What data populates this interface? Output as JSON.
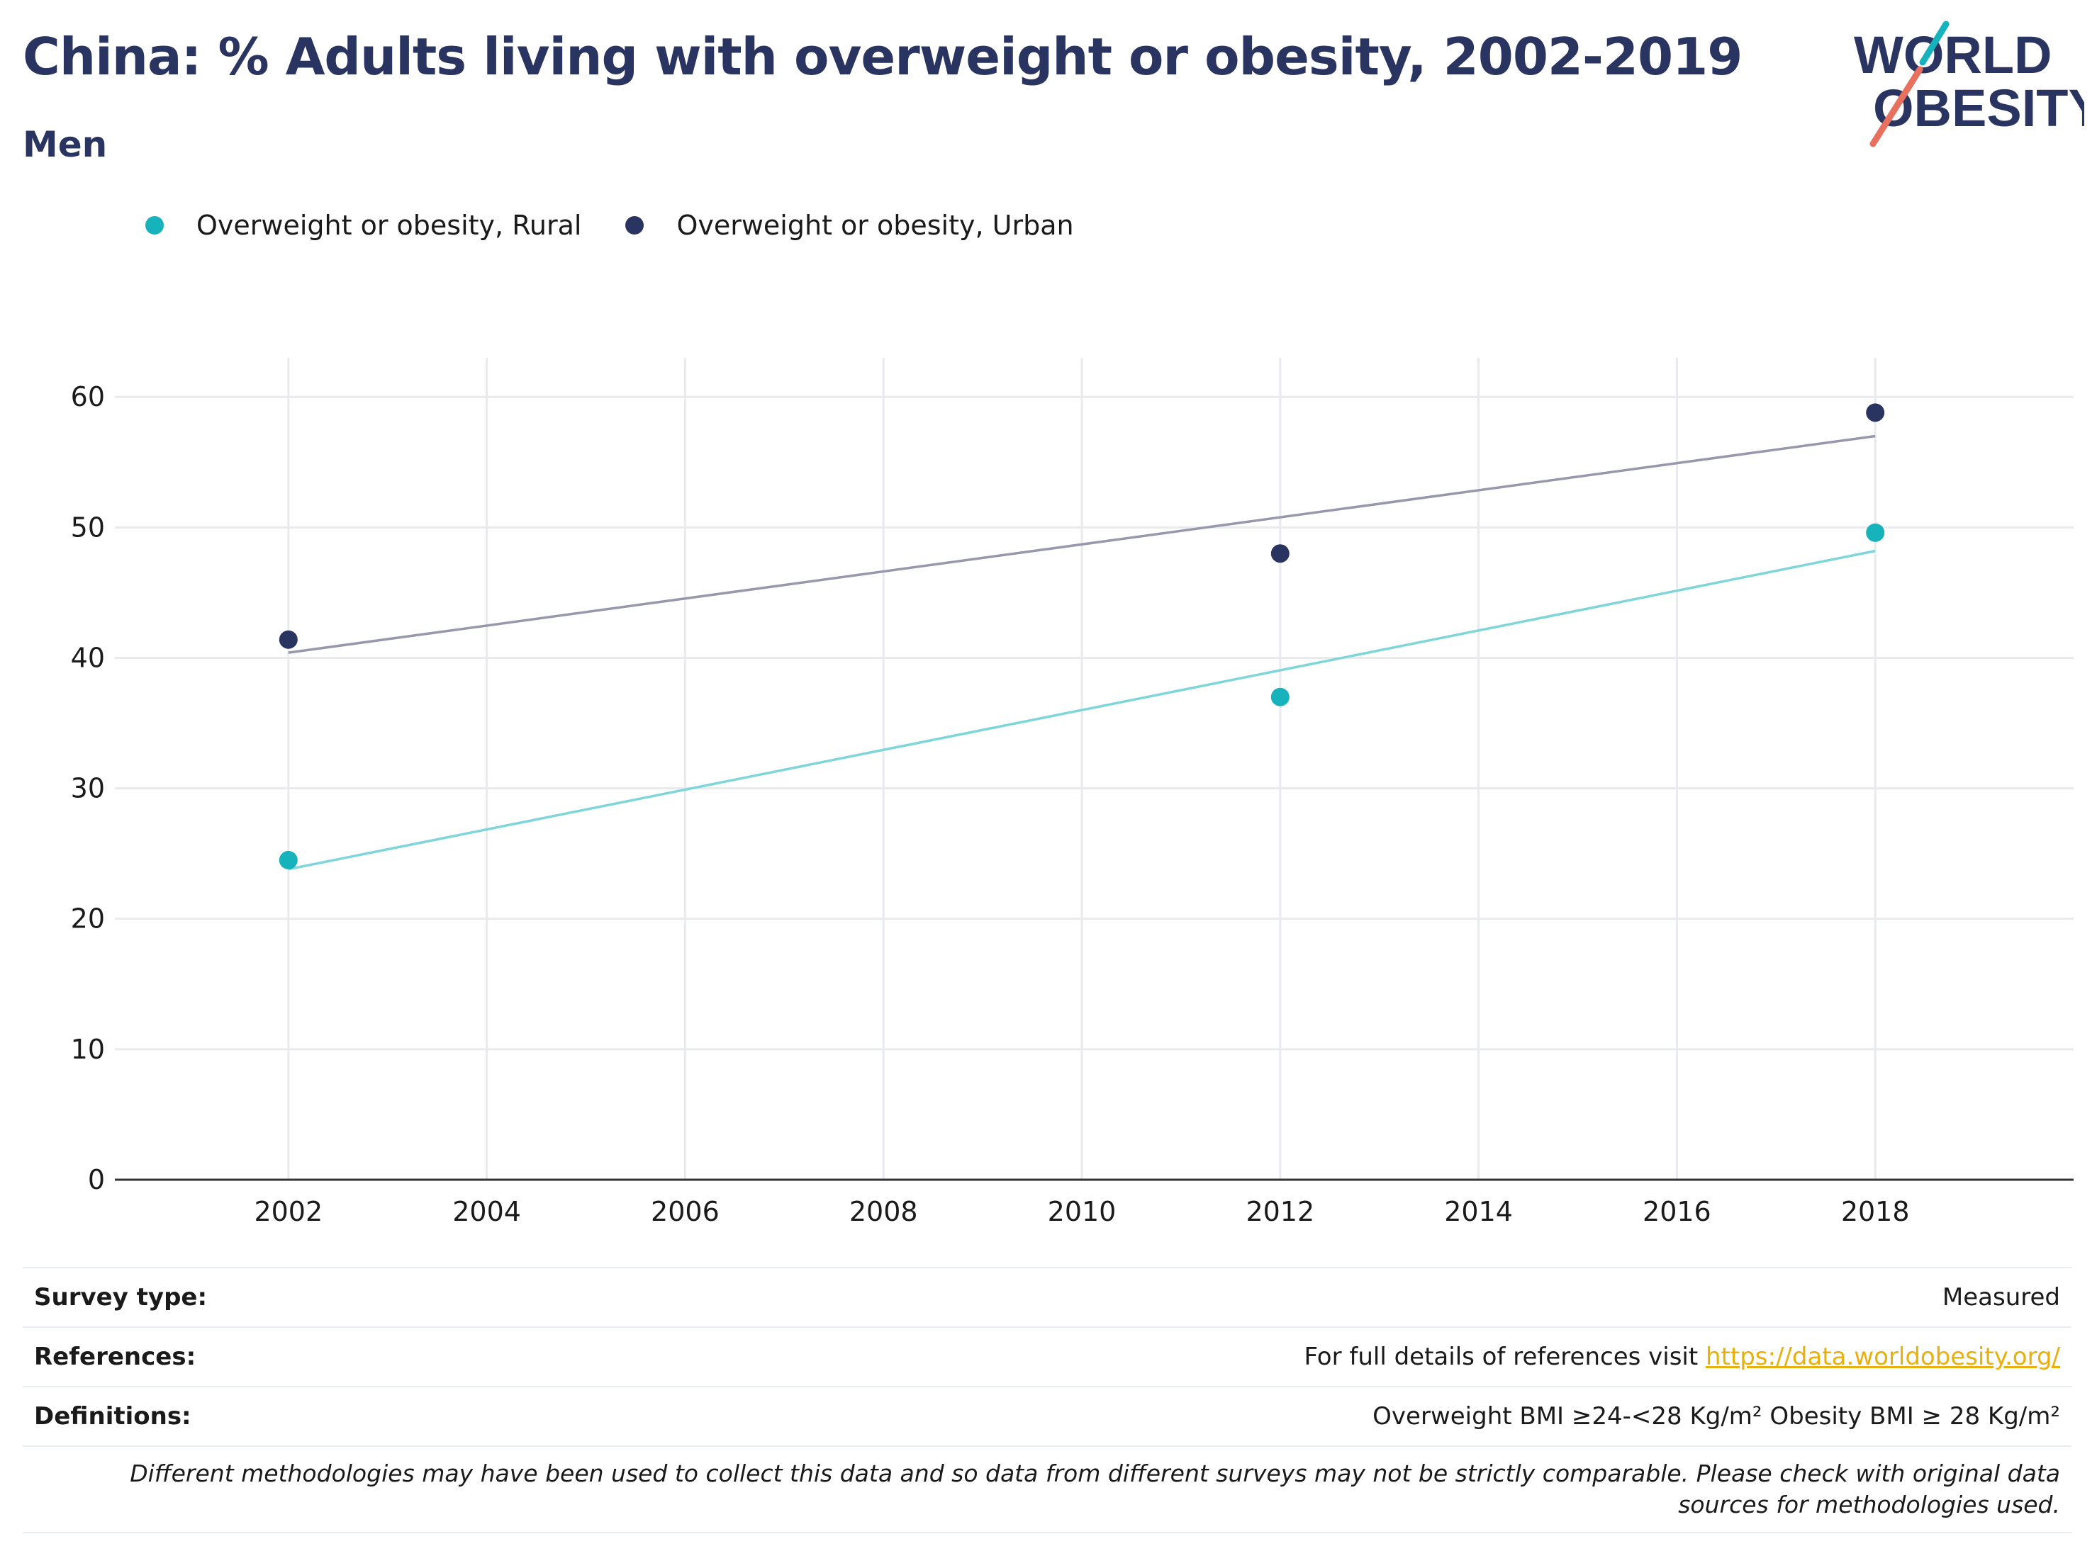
{
  "header": {
    "title": "China: % Adults living with overweight or obesity, 2002-2019",
    "subtitle": "Men"
  },
  "logo": {
    "line1": "WORLD",
    "line2": "OBESITY"
  },
  "colors": {
    "rural": "#17b3bd",
    "rural_trend": "#7fd6da",
    "urban": "#2a3461",
    "urban_trend": "#9797ad",
    "gridline": "#e8eaee",
    "axis": "#333333",
    "logo_teal": "#17b3bd",
    "logo_coral": "#e8705f"
  },
  "chart_data": {
    "type": "scatter",
    "title": "China: % Adults living with overweight or obesity, 2002-2019",
    "subtitle": "Men",
    "xlabel": "",
    "ylabel": "",
    "xlim": [
      2000.25,
      2020.0
    ],
    "ylim": [
      0,
      63
    ],
    "xticks": [
      2002,
      2004,
      2006,
      2008,
      2010,
      2012,
      2014,
      2016,
      2018
    ],
    "yticks": [
      0,
      10,
      20,
      30,
      40,
      50,
      60
    ],
    "grid": true,
    "legend_position": "top-left",
    "series": [
      {
        "name": "Overweight or obesity, Rural",
        "color": "#17b3bd",
        "points": [
          {
            "x": 2002,
            "y": 24.5
          },
          {
            "x": 2012,
            "y": 37.0
          },
          {
            "x": 2018,
            "y": 49.6
          }
        ],
        "trendline": {
          "x": [
            2002,
            2018
          ],
          "y": [
            23.8,
            48.2
          ],
          "color": "#7fd6da"
        }
      },
      {
        "name": "Overweight or obesity, Urban",
        "color": "#2a3461",
        "points": [
          {
            "x": 2002,
            "y": 41.4
          },
          {
            "x": 2012,
            "y": 48.0
          },
          {
            "x": 2018,
            "y": 58.8
          }
        ],
        "trendline": {
          "x": [
            2002,
            2018
          ],
          "y": [
            40.4,
            57.0
          ],
          "color": "#9797ad"
        }
      }
    ]
  },
  "info": {
    "survey_type_label": "Survey type:",
    "survey_type_value": "Measured",
    "references_label": "References:",
    "references_text": "For full details of references visit",
    "references_link": "https://data.worldobesity.org/",
    "definitions_label": "Definitions:",
    "definitions_value": "Overweight BMI ≥24-<28 Kg/m² Obesity BMI ≥ 28 Kg/m²",
    "note": "Different methodologies may have been used to collect this data and so data from different surveys may not be strictly comparable. Please check with original data sources for methodologies used."
  }
}
